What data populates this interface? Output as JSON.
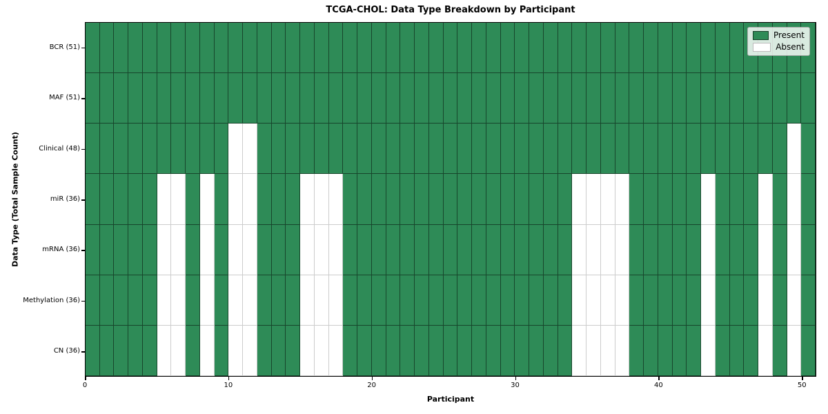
{
  "title": "TCGA-CHOL: Data Type Breakdown by Participant",
  "xlabel": "Participant",
  "ylabel": "Data Type (Total Sample Count)",
  "legend": {
    "present_label": "Present",
    "absent_label": "Absent"
  },
  "colors": {
    "present": "#2E8B57",
    "absent": "#ffffff",
    "present_swatch_border": "rgba(0,0,0,0.55)",
    "absent_swatch_border": "#bbbbbb"
  },
  "chart_data": {
    "type": "heatmap",
    "title": "TCGA-CHOL: Data Type Breakdown by Participant",
    "xlabel": "Participant",
    "ylabel": "Data Type (Total Sample Count)",
    "legend": [
      "Present",
      "Absent"
    ],
    "legend_position": "upper right",
    "n_participants": 51,
    "x_range": [
      0,
      51
    ],
    "x_ticks": [
      0,
      10,
      20,
      30,
      40,
      50
    ],
    "grid": true,
    "rows": [
      {
        "label": "BCR (51)",
        "total": 51,
        "absent_participants": []
      },
      {
        "label": "MAF (51)",
        "total": 51,
        "absent_participants": []
      },
      {
        "label": "Clinical (48)",
        "total": 48,
        "absent_participants": [
          10,
          11,
          49
        ]
      },
      {
        "label": "miR (36)",
        "total": 36,
        "absent_participants": [
          5,
          6,
          8,
          10,
          11,
          15,
          16,
          17,
          34,
          35,
          36,
          37,
          43,
          47,
          49
        ]
      },
      {
        "label": "mRNA (36)",
        "total": 36,
        "absent_participants": [
          5,
          6,
          8,
          10,
          11,
          15,
          16,
          17,
          34,
          35,
          36,
          37,
          43,
          47,
          49
        ]
      },
      {
        "label": "Methylation (36)",
        "total": 36,
        "absent_participants": [
          5,
          6,
          8,
          10,
          11,
          15,
          16,
          17,
          34,
          35,
          36,
          37,
          43,
          47,
          49
        ]
      },
      {
        "label": "CN (36)",
        "total": 36,
        "absent_participants": [
          5,
          6,
          8,
          10,
          11,
          15,
          16,
          17,
          34,
          35,
          36,
          37,
          43,
          47,
          49
        ]
      }
    ]
  }
}
